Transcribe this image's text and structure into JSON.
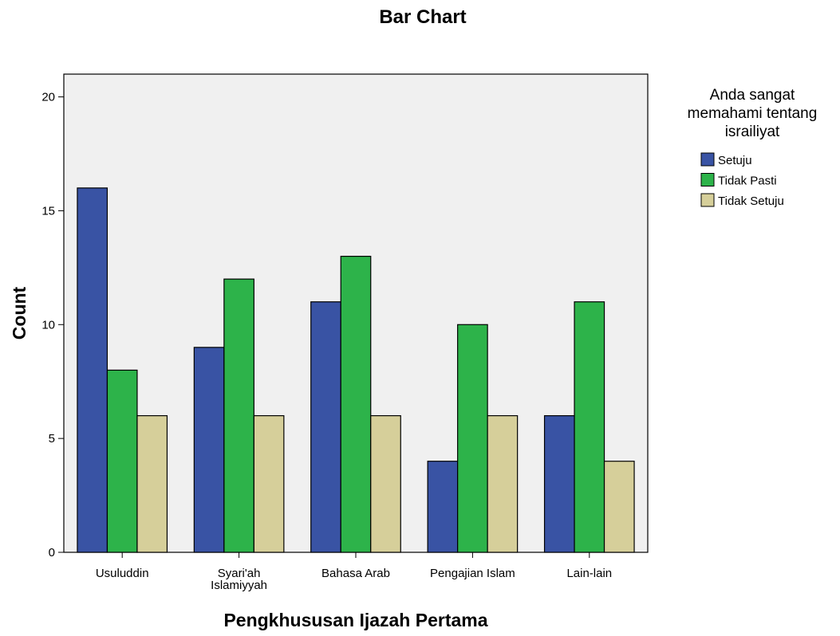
{
  "chart_data": {
    "type": "bar",
    "title": "Bar Chart",
    "xlabel": "Pengkhususan Ijazah Pertama",
    "ylabel": "Count",
    "categories": [
      [
        "Usuluddin"
      ],
      [
        "Syari'ah",
        "Islamiyyah"
      ],
      [
        "Bahasa Arab"
      ],
      [
        "Pengajian Islam"
      ],
      [
        "Lain-lain"
      ]
    ],
    "series": [
      {
        "name": "Setuju",
        "color": "#3953a4",
        "values": [
          16,
          9,
          11,
          4,
          6
        ]
      },
      {
        "name": "Tidak Pasti",
        "color": "#2db34a",
        "values": [
          8,
          12,
          13,
          10,
          11
        ]
      },
      {
        "name": "Tidak Setuju",
        "color": "#d6cf9a",
        "values": [
          6,
          6,
          6,
          6,
          4
        ]
      }
    ],
    "ylim": [
      0,
      21
    ],
    "yticks": [
      0,
      5,
      10,
      15,
      20
    ],
    "legend": {
      "title": [
        "Anda sangat",
        "memahami tentang",
        "israiliyat"
      ],
      "placement": "right"
    },
    "grid": false,
    "plot_background": "#f0f0f0"
  }
}
